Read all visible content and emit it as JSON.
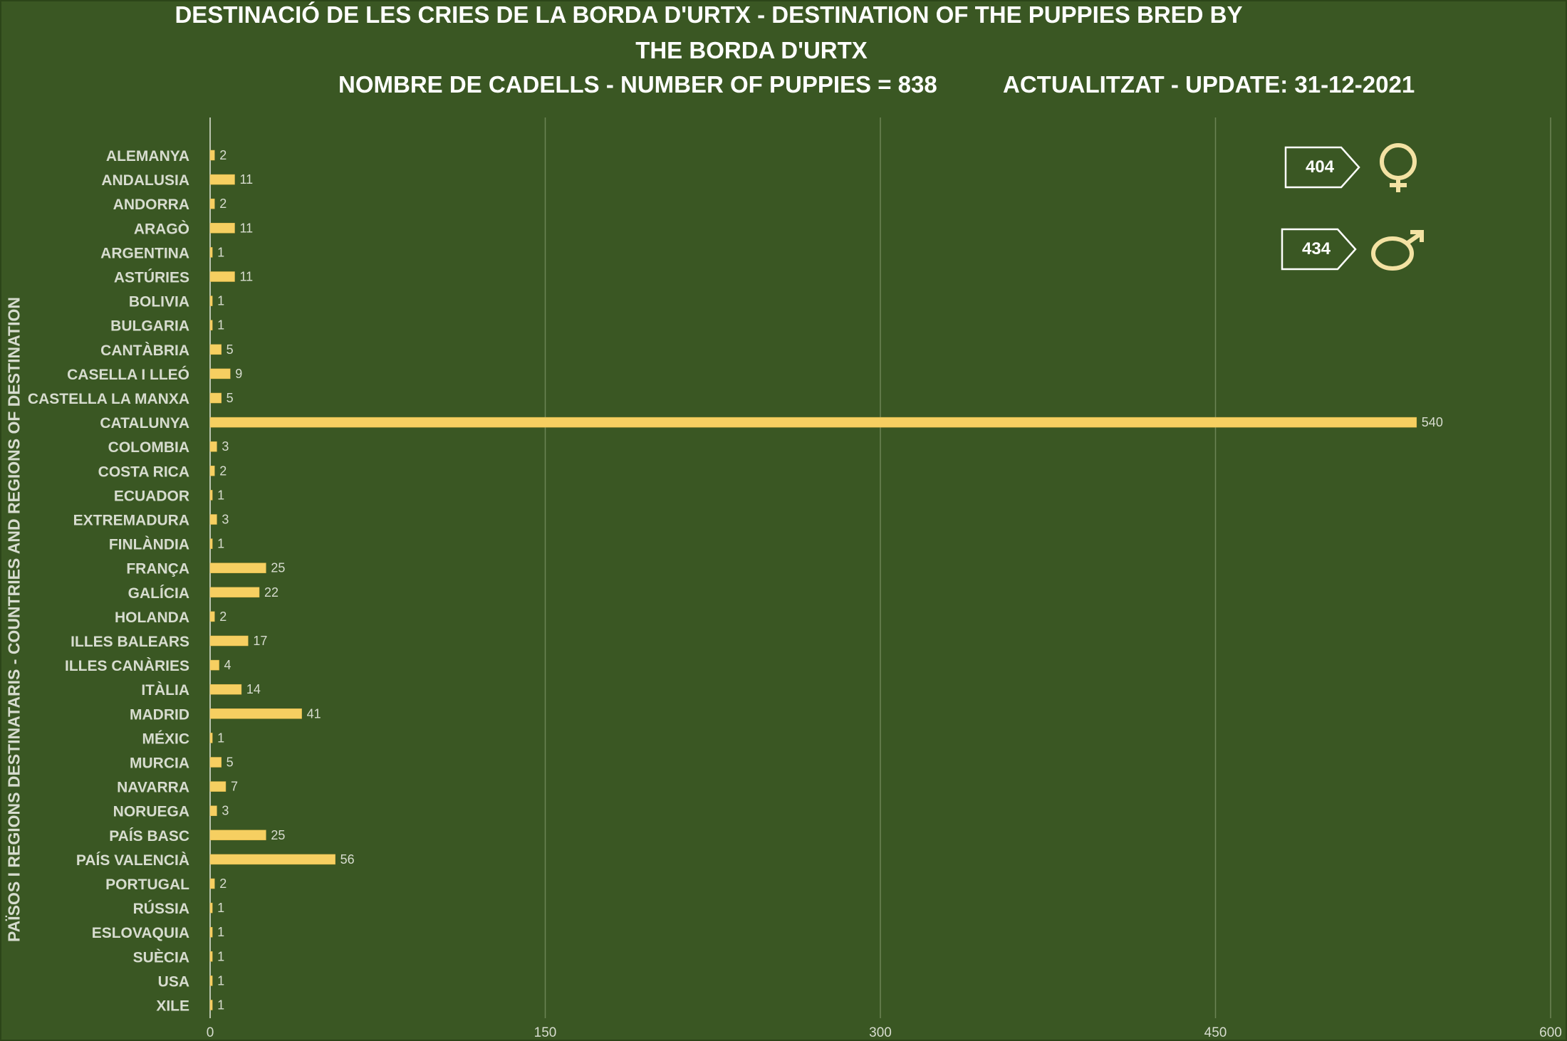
{
  "title_line1": "DESTINACIÓ DE LES CRIES DE LA BORDA D'URTX - DESTINATION OF THE PUPPIES BRED BY",
  "title_line2": "THE BORDA D'URTX",
  "subtitle_count": "NOMBRE DE CADELLS - NUMBER OF PUPPIES = 838",
  "subtitle_update": "ACTUALITZAT - UPDATE: 31-12-2021",
  "ylabel": "PAÏSOS I REGIONS DESTINATARIS  -  COUNTRIES AND REGIONS OF DESTINATION",
  "legend": {
    "female_count": "404",
    "male_count": "434",
    "female_icon": "female-symbol-icon",
    "male_icon": "male-symbol-icon"
  },
  "colors": {
    "background": "#3a5723",
    "bar": "#f6cf61",
    "text": "#d7dccf",
    "gridline": "#6c8455"
  },
  "chart_data": {
    "type": "bar",
    "orientation": "horizontal",
    "categories": [
      "ALEMANYA",
      "ANDALUSIA",
      "ANDORRA",
      "ARAGÒ",
      "ARGENTINA",
      "ASTÚRIES",
      "BOLIVIA",
      "BULGARIA",
      "CANTÀBRIA",
      "CASELLA I LLEÓ",
      "CASTELLA LA MANXA",
      "CATALUNYA",
      "COLOMBIA",
      "COSTA RICA",
      "ECUADOR",
      "EXTREMADURA",
      "FINLÀNDIA",
      "FRANÇA",
      "GALÍCIA",
      "HOLANDA",
      "ILLES BALEARS",
      "ILLES CANÀRIES",
      "ITÀLIA",
      "MADRID",
      "MÉXIC",
      "MURCIA",
      "NAVARRA",
      "NORUEGA",
      "PAÍS BASC",
      "PAÍS VALENCIÀ",
      "PORTUGAL",
      "RÚSSIA",
      "ESLOVAQUIA",
      "SUÈCIA",
      "USA",
      "XILE"
    ],
    "values": [
      2,
      11,
      2,
      11,
      1,
      11,
      1,
      1,
      5,
      9,
      5,
      540,
      3,
      2,
      1,
      3,
      1,
      25,
      22,
      2,
      17,
      4,
      14,
      41,
      1,
      5,
      7,
      3,
      25,
      56,
      2,
      1,
      1,
      1,
      1,
      1
    ],
    "xlim": [
      0,
      600
    ],
    "xticks": [
      0,
      150,
      300,
      450,
      600
    ],
    "grid": true,
    "data_labels": true
  }
}
